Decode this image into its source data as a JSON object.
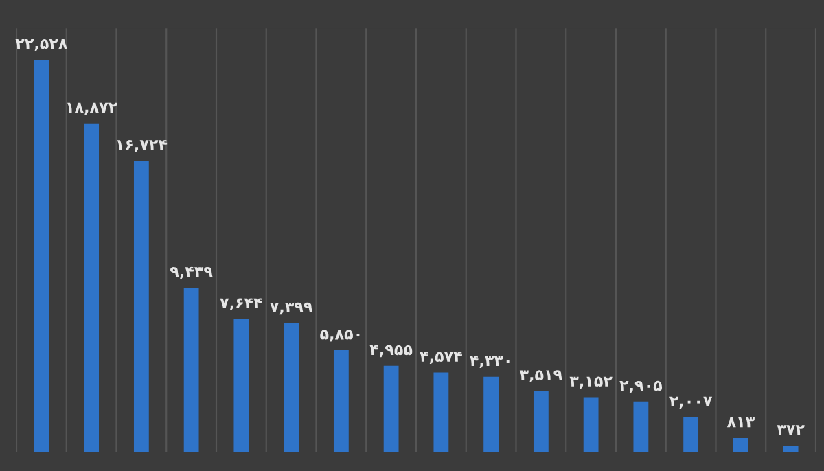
{
  "chart_data": {
    "type": "bar",
    "categories": [
      null,
      null,
      null,
      null,
      null,
      null,
      null,
      null,
      null,
      null,
      null,
      null,
      null,
      null,
      null,
      null
    ],
    "values": [
      22528,
      18872,
      16724,
      9439,
      7644,
      7399,
      5850,
      4955,
      4574,
      4330,
      3519,
      3152,
      2905,
      2007,
      813,
      372
    ],
    "value_labels": [
      "۲۲,۵۲۸",
      "۱۸,۸۷۲",
      "۱۶,۷۲۴",
      "۹,۴۳۹",
      "۷,۶۴۴",
      "۷,۳۹۹",
      "۵,۸۵۰",
      "۴,۹۵۵",
      "۴,۵۷۴",
      "۴,۳۳۰",
      "۳,۵۱۹",
      "۳,۱۵۲",
      "۲,۹۰۵",
      "۲,۰۰۷",
      "۸۱۳",
      "۳۷۲"
    ],
    "color": "#2f74c9",
    "grid": "x"
  }
}
